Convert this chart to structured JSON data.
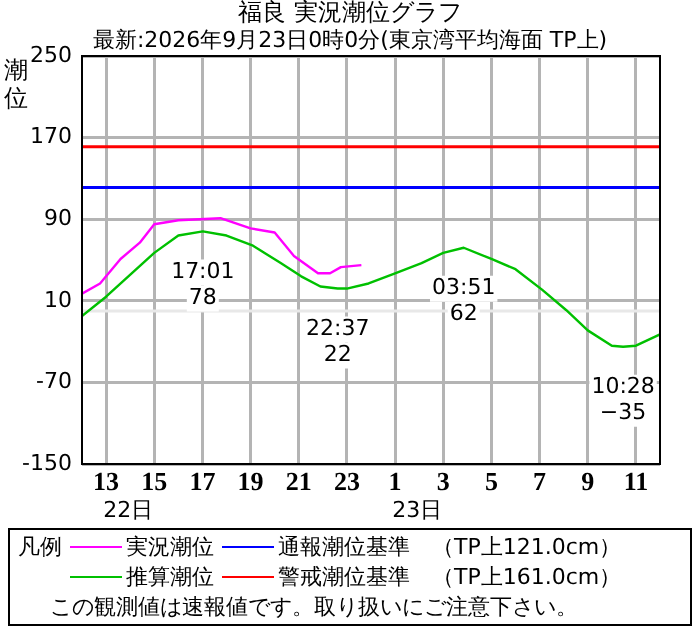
{
  "chart_data": {
    "type": "line",
    "title": "福良 実況潮位グラフ",
    "subtitle": "最新:2026年9月23日0時0分(東京湾平均海面 TP上)",
    "ylabel": "潮位",
    "legend_title": "凡例",
    "xlim": [
      "2026-09-22T12:00",
      "2026-09-23T12:00"
    ],
    "xticks": [
      {
        "value": "2026-09-22T13:00",
        "label": "13"
      },
      {
        "value": "2026-09-22T15:00",
        "label": "15"
      },
      {
        "value": "2026-09-22T17:00",
        "label": "17"
      },
      {
        "value": "2026-09-22T19:00",
        "label": "19"
      },
      {
        "value": "2026-09-22T21:00",
        "label": "21"
      },
      {
        "value": "2026-09-22T23:00",
        "label": "23"
      },
      {
        "value": "2026-09-23T01:00",
        "label": "1"
      },
      {
        "value": "2026-09-23T03:00",
        "label": "3"
      },
      {
        "value": "2026-09-23T05:00",
        "label": "5"
      },
      {
        "value": "2026-09-23T07:00",
        "label": "7"
      },
      {
        "value": "2026-09-23T09:00",
        "label": "9"
      },
      {
        "value": "2026-09-23T11:00",
        "label": "11"
      }
    ],
    "ylim": [
      -150,
      250
    ],
    "yticks": [
      -150,
      -70,
      10,
      90,
      170,
      250
    ],
    "grid": true,
    "legend": "bottom",
    "marker": "none",
    "line_style": "solid",
    "series": [
      {
        "name": "実況潮位",
        "color": "#ff00ff",
        "x": [
          "2026-09-22T12:00",
          "2026-09-22T12:45",
          "2026-09-22T13:36",
          "2026-09-22T14:24",
          "2026-09-22T15:00",
          "2026-09-22T16:00",
          "2026-09-22T17:45",
          "2026-09-22T19:00",
          "2026-09-22T20:00",
          "2026-09-22T20:48",
          "2026-09-22T21:48",
          "2026-09-22T22:18",
          "2026-09-22T22:45",
          "2026-09-22T23:36"
        ],
        "values": [
          17,
          27,
          51,
          67,
          85,
          89,
          91,
          81,
          77,
          54,
          37,
          37,
          43,
          45
        ]
      },
      {
        "name": "推算潮位",
        "color": "#00c000",
        "x": [
          "2026-09-22T12:00",
          "2026-09-22T13:00",
          "2026-09-22T15:00",
          "2026-09-22T16:00",
          "2026-09-22T17:01",
          "2026-09-22T18:00",
          "2026-09-22T19:06",
          "2026-09-22T20:15",
          "2026-09-22T21:06",
          "2026-09-22T21:54",
          "2026-09-22T22:37",
          "2026-09-22T23:00",
          "2026-09-22T23:54",
          "2026-09-23T01:00",
          "2026-09-23T02:06",
          "2026-09-23T03:00",
          "2026-09-23T03:51",
          "2026-09-23T05:00",
          "2026-09-23T06:00",
          "2026-09-23T07:06",
          "2026-09-23T08:06",
          "2026-09-23T09:00",
          "2026-09-23T10:00",
          "2026-09-23T10:28",
          "2026-09-23T11:00",
          "2026-09-23T12:00"
        ],
        "values": [
          -5,
          14,
          57,
          74,
          78,
          74,
          64,
          47,
          34,
          24,
          22,
          22,
          27,
          37,
          47,
          57,
          62,
          51,
          41,
          21,
          1,
          -19,
          -34,
          -35,
          -34,
          -23
        ]
      }
    ],
    "ref_lines": [
      {
        "axis": "y",
        "value": 121,
        "label": "通報潮位基準　（TP上121.0cm）",
        "color": "#0000ff"
      },
      {
        "axis": "y",
        "value": 161,
        "label": "警戒潮位基準　（TP上161.0cm）",
        "color": "#ff0000"
      },
      {
        "axis": "y",
        "value": 0,
        "color": "#e8e8e8"
      }
    ],
    "annotations": [
      {
        "text": "17:01\n78",
        "x": "2026-09-22T17:01",
        "y": 78
      },
      {
        "text": "22:37\n22",
        "x": "2026-09-22T22:37",
        "y": 22
      },
      {
        "text": "03:51\n62",
        "x": "2026-09-23T03:51",
        "y": 62
      },
      {
        "text": "10:28\n−35",
        "x": "2026-09-23T10:28",
        "y": -35
      },
      "22日",
      "23日",
      "この観測値は速報値です。取り扱いにご注意下さい。"
    ]
  }
}
